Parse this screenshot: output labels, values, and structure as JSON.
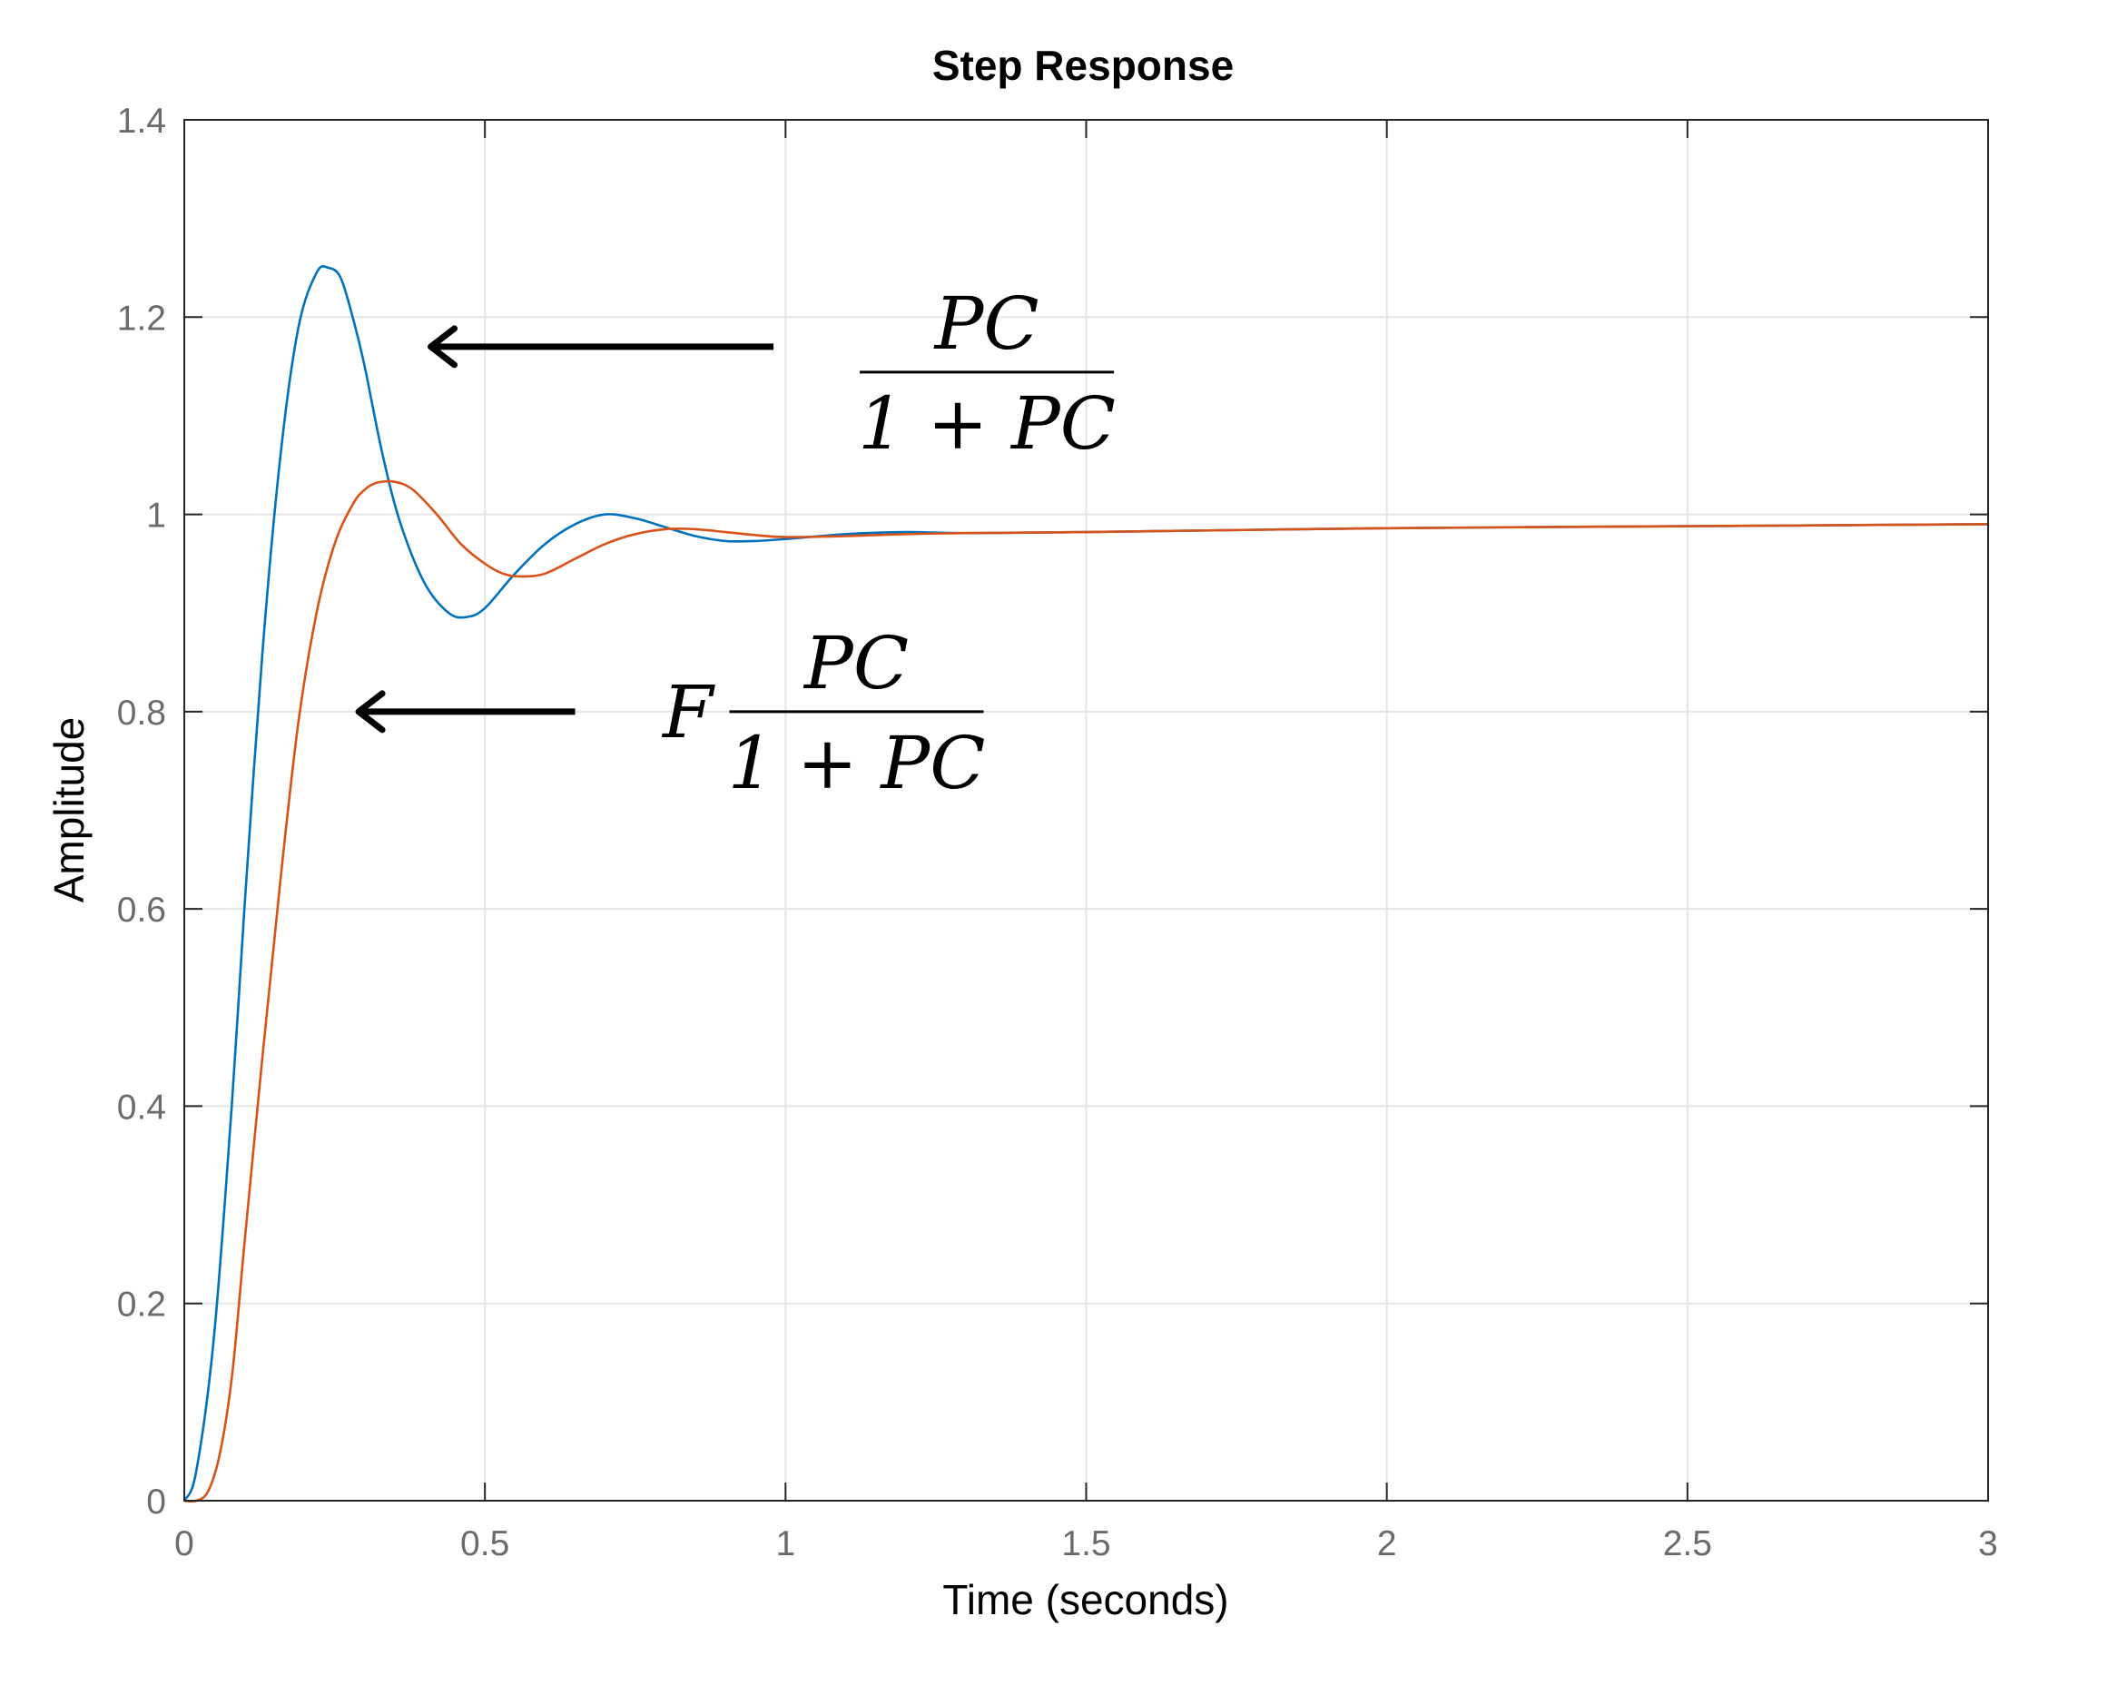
{
  "chart_data": {
    "type": "line",
    "title": "Step Response",
    "xlabel": "Time (seconds)",
    "ylabel": "Amplitude",
    "xlim": [
      0,
      3
    ],
    "ylim": [
      0,
      1.4
    ],
    "xticks": [
      "0",
      "0.5",
      "1",
      "1.5",
      "2",
      "2.5",
      "3"
    ],
    "yticks": [
      "0",
      "0.2",
      "0.4",
      "0.6",
      "0.8",
      "1",
      "1.2",
      "1.4"
    ],
    "grid": true,
    "legend": "none",
    "series": [
      {
        "color": "#0072BD",
        "points": [
          [
            0,
            0
          ],
          [
            0.02,
            0.03
          ],
          [
            0.05,
            0.17
          ],
          [
            0.08,
            0.41
          ],
          [
            0.1,
            0.6
          ],
          [
            0.13,
            0.86
          ],
          [
            0.16,
            1.06
          ],
          [
            0.19,
            1.19
          ],
          [
            0.22,
            1.245
          ],
          [
            0.24,
            1.25
          ],
          [
            0.26,
            1.24
          ],
          [
            0.28,
            1.2
          ],
          [
            0.3,
            1.15
          ],
          [
            0.33,
            1.06
          ],
          [
            0.36,
            0.99
          ],
          [
            0.4,
            0.93
          ],
          [
            0.44,
            0.9
          ],
          [
            0.47,
            0.896
          ],
          [
            0.5,
            0.905
          ],
          [
            0.55,
            0.94
          ],
          [
            0.6,
            0.97
          ],
          [
            0.65,
            0.99
          ],
          [
            0.7,
            1.0
          ],
          [
            0.75,
            0.996
          ],
          [
            0.8,
            0.987
          ],
          [
            0.85,
            0.978
          ],
          [
            0.9,
            0.973
          ],
          [
            0.95,
            0.973
          ],
          [
            1.0,
            0.975
          ],
          [
            1.1,
            0.98
          ],
          [
            1.2,
            0.982
          ],
          [
            1.3,
            0.981
          ],
          [
            1.5,
            0.982
          ],
          [
            2.0,
            0.986
          ],
          [
            2.5,
            0.988
          ],
          [
            3.0,
            0.99
          ]
        ]
      },
      {
        "color": "#D95319",
        "points": [
          [
            0,
            0
          ],
          [
            0.02,
            0.0
          ],
          [
            0.04,
            0.01
          ],
          [
            0.06,
            0.05
          ],
          [
            0.08,
            0.13
          ],
          [
            0.1,
            0.26
          ],
          [
            0.13,
            0.45
          ],
          [
            0.16,
            0.63
          ],
          [
            0.19,
            0.79
          ],
          [
            0.22,
            0.9
          ],
          [
            0.25,
            0.97
          ],
          [
            0.28,
            1.01
          ],
          [
            0.3,
            1.025
          ],
          [
            0.32,
            1.032
          ],
          [
            0.35,
            1.033
          ],
          [
            0.38,
            1.025
          ],
          [
            0.42,
            1.0
          ],
          [
            0.46,
            0.97
          ],
          [
            0.5,
            0.95
          ],
          [
            0.53,
            0.94
          ],
          [
            0.56,
            0.937
          ],
          [
            0.6,
            0.94
          ],
          [
            0.65,
            0.955
          ],
          [
            0.7,
            0.97
          ],
          [
            0.75,
            0.98
          ],
          [
            0.8,
            0.985
          ],
          [
            0.85,
            0.985
          ],
          [
            0.9,
            0.982
          ],
          [
            0.95,
            0.979
          ],
          [
            1.0,
            0.977
          ],
          [
            1.1,
            0.978
          ],
          [
            1.2,
            0.98
          ],
          [
            1.3,
            0.981
          ],
          [
            1.5,
            0.982
          ],
          [
            2.0,
            0.986
          ],
          [
            2.5,
            0.988
          ],
          [
            3.0,
            0.99
          ]
        ]
      }
    ],
    "annotations": [
      {
        "kind": "arrow",
        "from": [
          0.98,
          1.17
        ],
        "to": [
          0.41,
          1.17
        ],
        "prefix": "",
        "numerator": "PC",
        "denominator": "1 + PC"
      },
      {
        "kind": "arrow",
        "from": [
          0.65,
          0.8
        ],
        "to": [
          0.29,
          0.8
        ],
        "prefix": "F",
        "numerator": "PC",
        "denominator": "1 + PC"
      }
    ]
  }
}
